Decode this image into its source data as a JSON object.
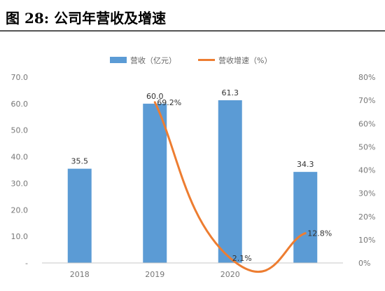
{
  "figure": {
    "title": "图  28:  公司年营收及增速"
  },
  "chart_data": {
    "type": "bar",
    "categories": [
      "2018",
      "2019",
      "2020",
      ""
    ],
    "series": [
      {
        "name": "营收（亿元）",
        "kind": "bar",
        "axis": "left",
        "color": "#5b9bd5",
        "values": [
          35.5,
          60.0,
          61.3,
          34.3
        ],
        "labels": [
          "35.5",
          "60.0",
          "61.3",
          "34.3"
        ]
      },
      {
        "name": "营收增速（%）",
        "kind": "line",
        "axis": "right",
        "color": "#ed7d31",
        "values": [
          null,
          69.2,
          2.1,
          12.8
        ],
        "labels": [
          "",
          "69.2%",
          "2.1%",
          "12.8%"
        ]
      }
    ],
    "y_left": {
      "ylim": [
        0,
        70
      ],
      "ticks": [
        "-",
        "10.0",
        "20.0",
        "30.0",
        "40.0",
        "50.0",
        "60.0",
        "70.0"
      ]
    },
    "y_right": {
      "ylim": [
        0,
        80
      ],
      "ticks": [
        "0%",
        "10%",
        "20%",
        "30%",
        "40%",
        "50%",
        "60%",
        "70%",
        "80%"
      ]
    },
    "legend": "top-center",
    "grid": false
  }
}
